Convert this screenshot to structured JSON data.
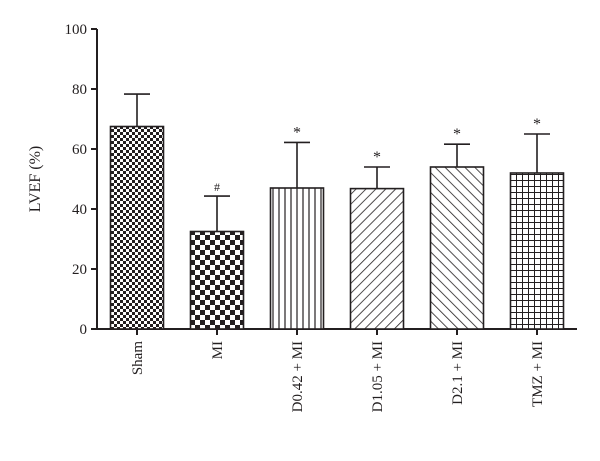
{
  "chart_data": {
    "type": "bar",
    "title": "",
    "xlabel": "",
    "ylabel": "LVEF (%)",
    "ylim": [
      0,
      100
    ],
    "yticks": [
      0,
      20,
      40,
      60,
      80,
      100
    ],
    "grid": false,
    "categories": [
      "Sham",
      "MI",
      "D0.42 + MI",
      "D1.05 + MI",
      "D2.1 + MI",
      "TMZ + MI"
    ],
    "values": [
      67.5,
      32.5,
      47,
      46.8,
      54,
      52
    ],
    "error": [
      10.8,
      11.8,
      15.2,
      7.2,
      7.6,
      13
    ],
    "significance": [
      "",
      "#",
      "*",
      "*",
      "*",
      "*"
    ],
    "patterns": [
      "small-checker",
      "large-checker",
      "vertical-lines",
      "diagonal-up",
      "diagonal-down",
      "grid"
    ]
  }
}
